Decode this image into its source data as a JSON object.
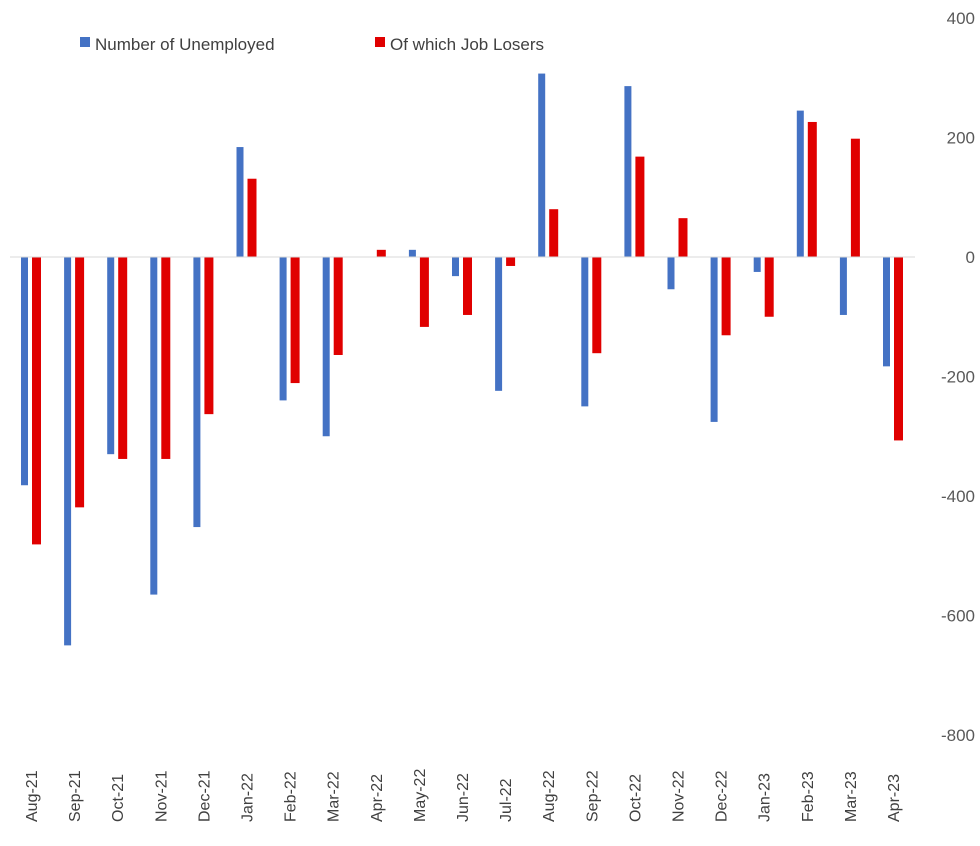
{
  "chart_data": {
    "type": "bar",
    "title": "",
    "xlabel": "",
    "ylabel": "",
    "ylim": [
      -800,
      400
    ],
    "yticks": [
      400,
      200,
      0,
      -200,
      -400,
      -600,
      -800
    ],
    "y_axis_position": "right",
    "grid": false,
    "legend_placement": "top-left",
    "categories": [
      "Aug-21",
      "Sep-21",
      "Oct-21",
      "Nov-21",
      "Dec-21",
      "Jan-22",
      "Feb-22",
      "Mar-22",
      "Apr-22",
      "May-22",
      "Jun-22",
      "Jul-22",
      "Aug-22",
      "Sep-22",
      "Oct-22",
      "Nov-22",
      "Dec-22",
      "Jan-23",
      "Feb-23",
      "Mar-23",
      "Apr-23"
    ],
    "series": [
      {
        "name": "Number of Unemployed",
        "color": "#4472C4",
        "values": [
          -382,
          -650,
          -330,
          -565,
          -452,
          184,
          -240,
          -300,
          0,
          12,
          -32,
          -224,
          307,
          -250,
          286,
          -54,
          -276,
          -25,
          245,
          -97,
          -183
        ]
      },
      {
        "name": "Of which Job Losers",
        "color": "#E00000",
        "values": [
          -481,
          -419,
          -338,
          -338,
          -263,
          131,
          -211,
          -164,
          12,
          -117,
          -97,
          -15,
          80,
          -161,
          168,
          65,
          -131,
          -100,
          226,
          198,
          -307
        ]
      }
    ]
  }
}
